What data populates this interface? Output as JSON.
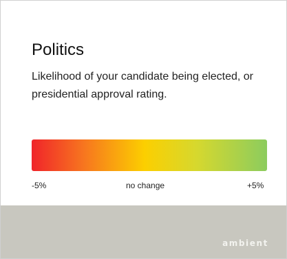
{
  "card": {
    "title": "Politics",
    "description": "Likelihood of your candidate being elected, or presidential approval rating."
  },
  "scale": {
    "min_label": "-5%",
    "mid_label": "no change",
    "max_label": "+5%",
    "colors": [
      "#f0242a",
      "#f7751f",
      "#fccf00",
      "#d6d82e",
      "#8ccc5e"
    ]
  },
  "footer": {
    "brand": "ambient",
    "background": "#c8c7bf"
  }
}
